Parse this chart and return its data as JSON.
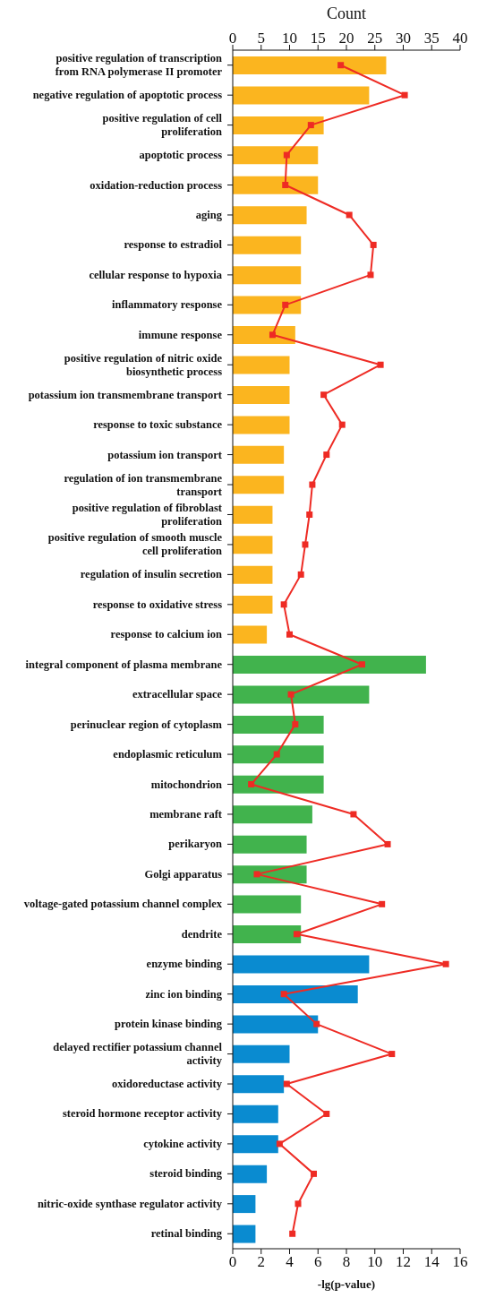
{
  "chart_data": {
    "type": "bar",
    "orientation": "horizontal",
    "categories": [
      "positive regulation of transcription from RNA polymerase II promoter",
      "negative regulation of apoptotic process",
      "positive regulation of cell proliferation",
      "apoptotic process",
      "oxidation-reduction process",
      "aging",
      "response to estradiol",
      "cellular response to hypoxia",
      "inflammatory response",
      "immune response",
      "positive regulation of nitric oxide biosynthetic process",
      "potassium ion transmembrane transport",
      "response to toxic substance",
      "potassium ion transport",
      "regulation of ion transmembrane transport",
      "positive regulation of fibroblast proliferation",
      "positive regulation of smooth muscle cell proliferation",
      "regulation of insulin secretion",
      "response to oxidative stress",
      "response to calcium ion",
      "integral component of plasma membrane",
      "extracellular space",
      "perinuclear region of cytoplasm",
      "endoplasmic reticulum",
      "mitochondrion",
      "membrane raft",
      "perikaryon",
      "Golgi apparatus",
      "voltage-gated potassium channel complex",
      "dendrite",
      "enzyme binding",
      "zinc ion binding",
      "protein kinase binding",
      "delayed rectifier potassium channel activity",
      "oxidoreductase activity",
      "steroid hormone receptor activity",
      "cytokine activity",
      "steroid binding",
      "nitric-oxide synthase regulator activity",
      "retinal binding"
    ],
    "series": [
      {
        "type": "bar",
        "axis": "x2",
        "values": [
          27,
          24,
          16,
          15,
          15,
          13,
          12,
          12,
          12,
          11,
          10,
          10,
          10,
          9,
          9,
          7,
          7,
          7,
          7,
          6,
          34,
          24,
          16,
          16,
          16,
          14,
          13,
          13,
          12,
          12,
          24,
          22,
          15,
          10,
          9,
          8,
          8,
          6,
          4,
          4
        ],
        "colors": [
          "#fbb51f",
          "#fbb51f",
          "#fbb51f",
          "#fbb51f",
          "#fbb51f",
          "#fbb51f",
          "#fbb51f",
          "#fbb51f",
          "#fbb51f",
          "#fbb51f",
          "#fbb51f",
          "#fbb51f",
          "#fbb51f",
          "#fbb51f",
          "#fbb51f",
          "#fbb51f",
          "#fbb51f",
          "#fbb51f",
          "#fbb51f",
          "#fbb51f",
          "#41b34d",
          "#41b34d",
          "#41b34d",
          "#41b34d",
          "#41b34d",
          "#41b34d",
          "#41b34d",
          "#41b34d",
          "#41b34d",
          "#41b34d",
          "#0a8bd0",
          "#0a8bd0",
          "#0a8bd0",
          "#0a8bd0",
          "#0a8bd0",
          "#0a8bd0",
          "#0a8bd0",
          "#0a8bd0",
          "#0a8bd0",
          "#0a8bd0"
        ]
      },
      {
        "type": "line",
        "color": "#ee2b24",
        "values": [
          7.6,
          12.1,
          5.5,
          3.8,
          3.7,
          8.2,
          9.9,
          9.7,
          3.7,
          2.8,
          10.4,
          6.4,
          7.7,
          6.6,
          5.6,
          5.4,
          5.1,
          4.8,
          3.6,
          4.0,
          9.1,
          4.1,
          4.4,
          3.1,
          1.3,
          8.5,
          10.9,
          1.7,
          10.5,
          4.5,
          15.0,
          3.6,
          5.9,
          11.2,
          3.8,
          6.6,
          3.3,
          5.7,
          4.6,
          4.2
        ]
      }
    ],
    "xlabel": "-lg(p-value)",
    "xlim": [
      0,
      16
    ],
    "xticks": [
      0,
      2,
      4,
      6,
      8,
      10,
      12,
      14,
      16
    ],
    "x2label": "Count",
    "x2lim": [
      0,
      40
    ],
    "x2ticks": [
      0,
      5,
      10,
      15,
      20,
      25,
      30,
      35,
      40
    ],
    "marker": "square",
    "line_style": "solid",
    "grid": false,
    "legend": false
  }
}
